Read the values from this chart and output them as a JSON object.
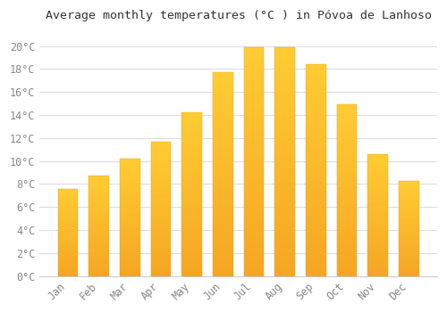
{
  "months": [
    "Jan",
    "Feb",
    "Mar",
    "Apr",
    "May",
    "Jun",
    "Jul",
    "Aug",
    "Sep",
    "Oct",
    "Nov",
    "Dec"
  ],
  "values": [
    7.6,
    8.7,
    10.2,
    11.7,
    14.2,
    17.7,
    19.9,
    19.9,
    18.4,
    14.9,
    10.6,
    8.3
  ],
  "bar_color_top": "#FFCC33",
  "bar_color_bottom": "#F5A623",
  "title": "Average monthly temperatures (°C ) in Póvoa de Lanhoso",
  "title_fontsize": 9.5,
  "ytick_labels": [
    "0°C",
    "2°C",
    "4°C",
    "6°C",
    "8°C",
    "10°C",
    "12°C",
    "14°C",
    "16°C",
    "18°C",
    "20°C"
  ],
  "ytick_values": [
    0,
    2,
    4,
    6,
    8,
    10,
    12,
    14,
    16,
    18,
    20
  ],
  "ylim": [
    0,
    21.5
  ],
  "background_color": "#ffffff",
  "grid_color": "#dddddd",
  "tick_label_color": "#888888",
  "tick_label_fontsize": 8.5,
  "xlabel_rotation": 45,
  "bar_width": 0.65
}
